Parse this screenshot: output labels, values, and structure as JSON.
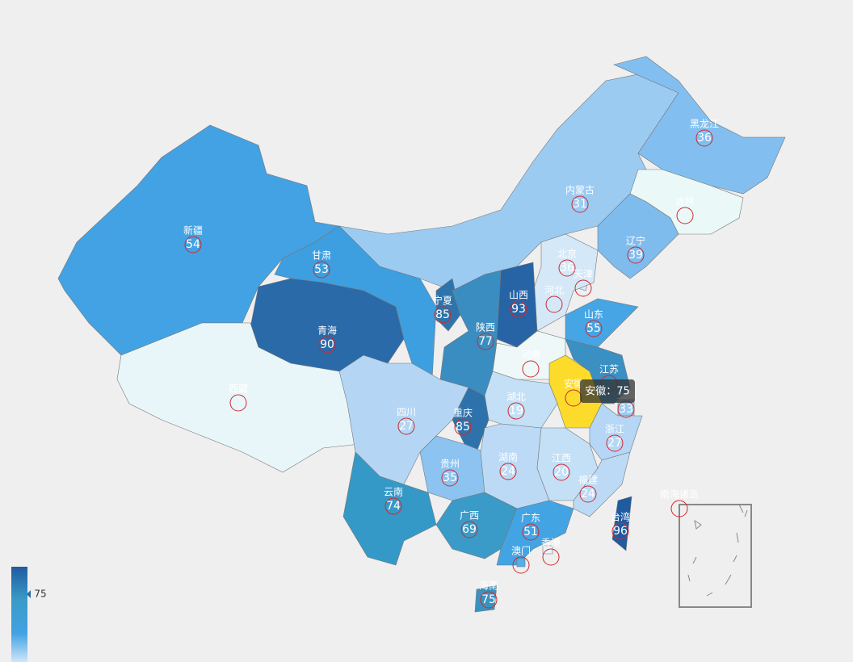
{
  "provinces": [
    {
      "name": "新疆",
      "value": 54,
      "color": "#42a2e3"
    },
    {
      "name": "甘肃",
      "value": 53,
      "color": "#3d9fe0"
    },
    {
      "name": "青海",
      "value": 90,
      "color": "#2a6aa8"
    },
    {
      "name": "西藏",
      "color": "#e8f6f9"
    },
    {
      "name": "内蒙古",
      "value": 31,
      "color": "#9ccbf2"
    },
    {
      "name": "黑龙江",
      "value": 36,
      "color": "#82bff0"
    },
    {
      "name": "吉林",
      "color": "#eaf8f8"
    },
    {
      "name": "辽宁",
      "value": 39,
      "color": "#7fbcee"
    },
    {
      "name": "北京",
      "value": 36,
      "color": "#aed3f5"
    },
    {
      "name": "天津",
      "color": "#d9ecf9"
    },
    {
      "name": "河北",
      "color": "#d4e8f8"
    },
    {
      "name": "山西",
      "value": 93,
      "color": "#2764a6"
    },
    {
      "name": "山东",
      "value": 55,
      "color": "#45a5e5"
    },
    {
      "name": "宁夏",
      "value": 85,
      "color": "#2e74ac"
    },
    {
      "name": "陕西",
      "value": 77,
      "color": "#3a8dc0"
    },
    {
      "name": "河南",
      "color": "#eef8f8"
    },
    {
      "name": "江苏",
      "color": "#3a8fc3"
    },
    {
      "name": "安徽",
      "color": "#fcdb2b"
    },
    {
      "name": "上海",
      "value": 33,
      "color": "#9ccbf2"
    },
    {
      "name": "湖北",
      "value": 19,
      "color": "#c4e0f6"
    },
    {
      "name": "浙江",
      "value": 27,
      "color": "#b5d7f5"
    },
    {
      "name": "四川",
      "value": 27,
      "color": "#b4d6f4"
    },
    {
      "name": "重庆",
      "value": 85,
      "color": "#2d72ab"
    },
    {
      "name": "贵州",
      "value": 35,
      "color": "#8cc3f0"
    },
    {
      "name": "湖南",
      "value": 24,
      "color": "#bcdaf5"
    },
    {
      "name": "江西",
      "value": 20,
      "color": "#c4e0f6"
    },
    {
      "name": "福建",
      "value": 24,
      "color": "#bcdaf5"
    },
    {
      "name": "云南",
      "value": 74,
      "color": "#3599c8"
    },
    {
      "name": "广西",
      "value": 69,
      "color": "#3a9bc8"
    },
    {
      "name": "广东",
      "value": 51,
      "color": "#43a4e4"
    },
    {
      "name": "台湾",
      "value": 96,
      "color": "#1f5ba0"
    },
    {
      "name": "澳门",
      "color": "#58aee8"
    },
    {
      "name": "香港",
      "color": "#e8f4f8"
    },
    {
      "name": "海南",
      "value": 75,
      "color": "#3a92c1"
    },
    {
      "name": "南海诸岛"
    }
  ],
  "tooltip": "安徽：75",
  "visual_map": {
    "indicator": 75
  }
}
